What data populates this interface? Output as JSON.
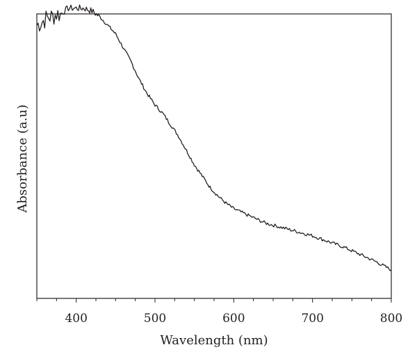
{
  "chart_data": {
    "type": "line",
    "title": "",
    "xlabel": "Wavelength (nm)",
    "ylabel": "Absorbance (a.u)",
    "xlim": [
      350,
      800
    ],
    "ylim": [
      0,
      1
    ],
    "x_ticks": [
      "400",
      "500",
      "600",
      "700",
      "800"
    ],
    "y_ticks_labeled": false,
    "grid": false,
    "legend": "none",
    "line_color": "#231f20",
    "series": [
      {
        "x": [
          350,
          355,
          360,
          365,
          370,
          375,
          380,
          385,
          390,
          395,
          400,
          410,
          420,
          430,
          440,
          450,
          460,
          470,
          480,
          490,
          500,
          510,
          520,
          530,
          540,
          550,
          560,
          570,
          580,
          590,
          600,
          620,
          640,
          660,
          680,
          700,
          720,
          740,
          760,
          780,
          800
        ],
        "values": [
          0.96,
          0.97,
          0.98,
          0.99,
          0.99,
          1.0,
          1.0,
          1.01,
          1.02,
          1.02,
          1.02,
          1.02,
          1.01,
          0.99,
          0.96,
          0.93,
          0.88,
          0.83,
          0.77,
          0.72,
          0.68,
          0.65,
          0.61,
          0.57,
          0.52,
          0.47,
          0.43,
          0.39,
          0.36,
          0.335,
          0.315,
          0.29,
          0.265,
          0.25,
          0.235,
          0.22,
          0.2,
          0.18,
          0.155,
          0.13,
          0.1
        ]
      }
    ]
  }
}
